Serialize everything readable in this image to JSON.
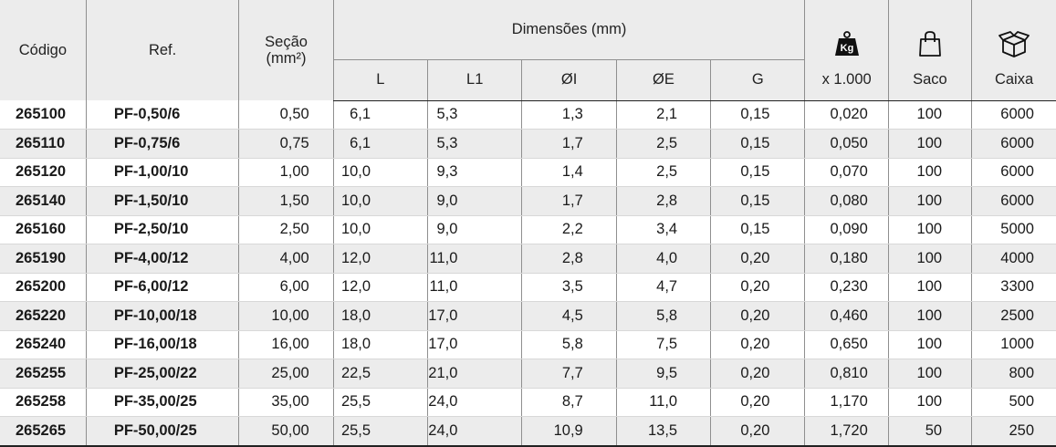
{
  "header": {
    "codigo": "Código",
    "ref": "Ref.",
    "secao": "Seção",
    "secao_unit": "(mm²)",
    "dimensoes": "Dimensões (mm)",
    "dims": [
      "L",
      "L1",
      "ØI",
      "ØE",
      "G"
    ],
    "kg_icon_text": "Kg",
    "kg_label": "x 1.000",
    "saco": "Saco",
    "caixa": "Caixa"
  },
  "rows": [
    {
      "codigo": "265100",
      "ref": "PF-0,50/6",
      "secao": "0,50",
      "L": "6,1",
      "L1": "5,3",
      "I": "1,3",
      "E": "2,1",
      "G": "0,15",
      "kg": "0,020",
      "saco": "100",
      "caixa": "6000"
    },
    {
      "codigo": "265110",
      "ref": "PF-0,75/6",
      "secao": "0,75",
      "L": "6,1",
      "L1": "5,3",
      "I": "1,7",
      "E": "2,5",
      "G": "0,15",
      "kg": "0,050",
      "saco": "100",
      "caixa": "6000"
    },
    {
      "codigo": "265120",
      "ref": "PF-1,00/10",
      "secao": "1,00",
      "L": "10,0",
      "L1": "9,3",
      "I": "1,4",
      "E": "2,5",
      "G": "0,15",
      "kg": "0,070",
      "saco": "100",
      "caixa": "6000"
    },
    {
      "codigo": "265140",
      "ref": "PF-1,50/10",
      "secao": "1,50",
      "L": "10,0",
      "L1": "9,0",
      "I": "1,7",
      "E": "2,8",
      "G": "0,15",
      "kg": "0,080",
      "saco": "100",
      "caixa": "6000"
    },
    {
      "codigo": "265160",
      "ref": "PF-2,50/10",
      "secao": "2,50",
      "L": "10,0",
      "L1": "9,0",
      "I": "2,2",
      "E": "3,4",
      "G": "0,15",
      "kg": "0,090",
      "saco": "100",
      "caixa": "5000"
    },
    {
      "codigo": "265190",
      "ref": "PF-4,00/12",
      "secao": "4,00",
      "L": "12,0",
      "L1": "11,0",
      "I": "2,8",
      "E": "4,0",
      "G": "0,20",
      "kg": "0,180",
      "saco": "100",
      "caixa": "4000"
    },
    {
      "codigo": "265200",
      "ref": "PF-6,00/12",
      "secao": "6,00",
      "L": "12,0",
      "L1": "11,0",
      "I": "3,5",
      "E": "4,7",
      "G": "0,20",
      "kg": "0,230",
      "saco": "100",
      "caixa": "3300"
    },
    {
      "codigo": "265220",
      "ref": "PF-10,00/18",
      "secao": "10,00",
      "L": "18,0",
      "L1": "17,0",
      "I": "4,5",
      "E": "5,8",
      "G": "0,20",
      "kg": "0,460",
      "saco": "100",
      "caixa": "2500"
    },
    {
      "codigo": "265240",
      "ref": "PF-16,00/18",
      "secao": "16,00",
      "L": "18,0",
      "L1": "17,0",
      "I": "5,8",
      "E": "7,5",
      "G": "0,20",
      "kg": "0,650",
      "saco": "100",
      "caixa": "1000"
    },
    {
      "codigo": "265255",
      "ref": "PF-25,00/22",
      "secao": "25,00",
      "L": "22,5",
      "L1": "21,0",
      "I": "7,7",
      "E": "9,5",
      "G": "0,20",
      "kg": "0,810",
      "saco": "100",
      "caixa": "800"
    },
    {
      "codigo": "265258",
      "ref": "PF-35,00/25",
      "secao": "35,00",
      "L": "25,5",
      "L1": "24,0",
      "I": "8,7",
      "E": "11,0",
      "G": "0,20",
      "kg": "1,170",
      "saco": "100",
      "caixa": "500"
    },
    {
      "codigo": "265265",
      "ref": "PF-50,00/25",
      "secao": "50,00",
      "L": "25,5",
      "L1": "24,0",
      "I": "10,9",
      "E": "13,5",
      "G": "0,20",
      "kg": "1,720",
      "saco": "50",
      "caixa": "250"
    }
  ]
}
